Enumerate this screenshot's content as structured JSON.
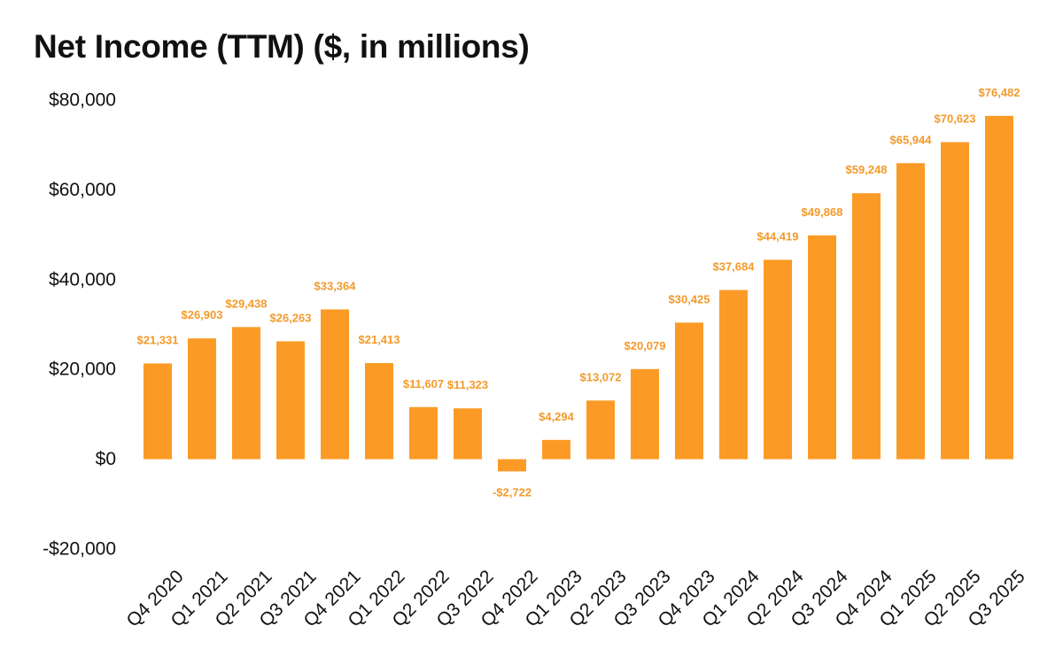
{
  "colors": {
    "bar": "#FB9B25",
    "label": "#F39A2A",
    "text": "#111111",
    "background": "#FFFFFF"
  },
  "chart_data": {
    "type": "bar",
    "title": "Net Income (TTM) ($, in millions)",
    "xlabel": "",
    "ylabel": "",
    "ylim": [
      -20000,
      80000
    ],
    "yticks": [
      80000,
      60000,
      40000,
      20000,
      0,
      -20000
    ],
    "ytick_labels": [
      "$80,000",
      "$60,000",
      "$40,000",
      "$20,000",
      "$0",
      "-$20,000"
    ],
    "grid": false,
    "legend": "none",
    "categories": [
      "Q4 2020",
      "Q1 2021",
      "Q2 2021",
      "Q3 2021",
      "Q4 2021",
      "Q1 2022",
      "Q2 2022",
      "Q3 2022",
      "Q4 2022",
      "Q1 2023",
      "Q2 2023",
      "Q3 2023",
      "Q4 2023",
      "Q1 2024",
      "Q2 2024",
      "Q3 2024",
      "Q4 2024",
      "Q1 2025",
      "Q2 2025",
      "Q3 2025"
    ],
    "values": [
      21331,
      26903,
      29438,
      26263,
      33364,
      21413,
      11607,
      11323,
      -2722,
      4294,
      13072,
      20079,
      30425,
      37684,
      44419,
      49868,
      59248,
      65944,
      70623,
      76482
    ],
    "data_labels": [
      "$21,331",
      "$26,903",
      "$29,438",
      "$26,263",
      "$33,364",
      "$21,413",
      "$11,607",
      "$11,323",
      "-$2,722",
      "$4,294",
      "$13,072",
      "$20,079",
      "$30,425",
      "$37,684",
      "$44,419",
      "$49,868",
      "$59,248",
      "$65,944",
      "$70,623",
      "$76,482"
    ]
  }
}
